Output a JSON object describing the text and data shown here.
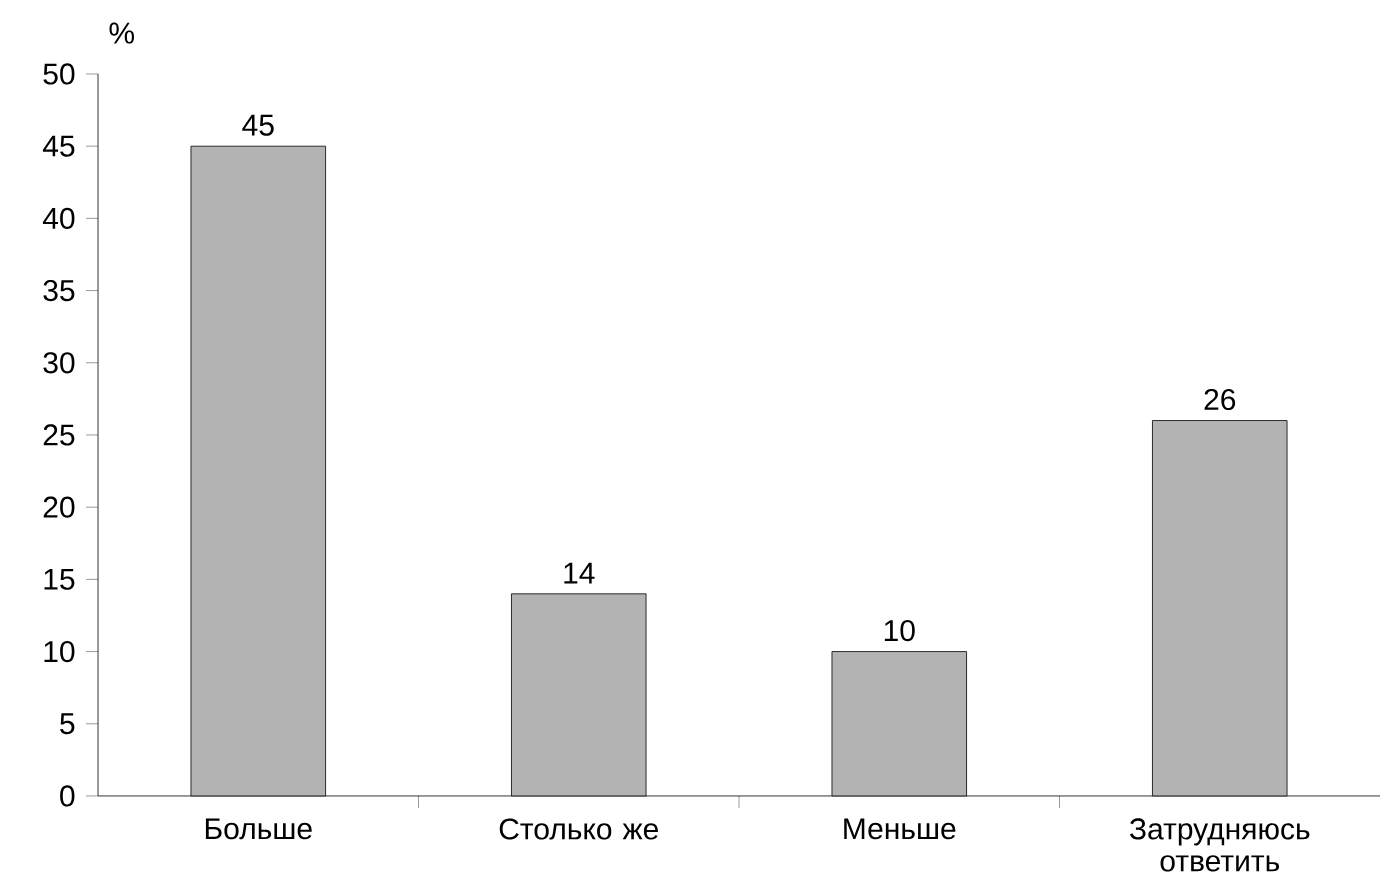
{
  "chart_data": {
    "type": "bar",
    "ylabel": "%",
    "categories": [
      "Больше",
      "Столько же",
      "Меньше",
      "Затрудняюсь ответить"
    ],
    "values": [
      45,
      14,
      10,
      26
    ],
    "color": "#b3b3b3",
    "ylim": [
      0,
      50
    ],
    "yticks": [
      0,
      5,
      10,
      15,
      20,
      25,
      30,
      35,
      40,
      45,
      50
    ],
    "data_labels": true
  }
}
